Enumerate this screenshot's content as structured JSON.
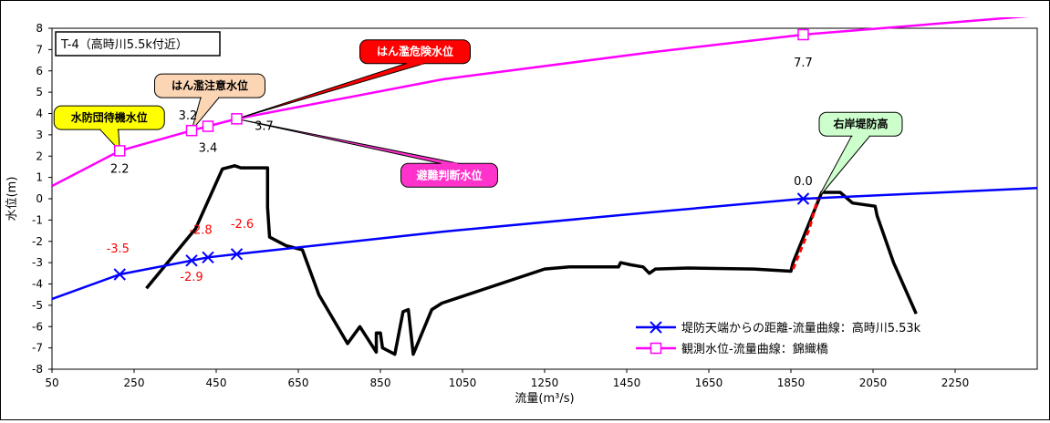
{
  "chart_data": {
    "type": "line",
    "title": "",
    "inset_label": "T-4（高時川5.5k付近）",
    "xlabel": "流量(m³/s)",
    "ylabel": "水位(m)",
    "xlim": [
      50,
      2450
    ],
    "ylim": [
      -8,
      8
    ],
    "xticks": [
      50,
      250,
      450,
      650,
      850,
      1050,
      1250,
      1450,
      1650,
      1850,
      2050,
      2250
    ],
    "yticks": [
      8,
      7,
      6,
      5,
      4,
      3,
      2,
      1,
      0,
      -1,
      -2,
      -3,
      -4,
      -5,
      -6,
      -7,
      -8
    ],
    "grid": "none",
    "legend_position": "bottom-right",
    "series": [
      {
        "name": "堤防天端からの距離-流量曲線：高時川5.53k",
        "color": "#0000ff",
        "marker": "x",
        "curve": [
          [
            50,
            -4.7
          ],
          [
            215,
            -3.55
          ],
          [
            390,
            -2.9
          ],
          [
            430,
            -2.75
          ],
          [
            500,
            -2.6
          ],
          [
            1000,
            -1.55
          ],
          [
            1500,
            -0.65
          ],
          [
            1880,
            0.0
          ],
          [
            2450,
            0.5
          ]
        ],
        "points": [
          [
            215,
            -3.55
          ],
          [
            390,
            -2.9
          ],
          [
            430,
            -2.75
          ],
          [
            500,
            -2.6
          ],
          [
            1880,
            0.0
          ]
        ],
        "labels": [
          {
            "text": "-3.5",
            "x": 215,
            "y": -3.55,
            "color": "#ff0000"
          },
          {
            "text": "-2.9",
            "x": 390,
            "y": -2.9,
            "color": "#ff0000"
          },
          {
            "text": "-2.8",
            "x": 430,
            "y": -2.75,
            "color": "#ff0000"
          },
          {
            "text": "-2.6",
            "x": 500,
            "y": -2.6,
            "color": "#ff0000"
          },
          {
            "text": "0.0",
            "x": 1880,
            "y": 0.0,
            "color": "#000000"
          }
        ]
      },
      {
        "name": "観測水位-流量曲線：錦織橋",
        "color": "#ff00ff",
        "marker": "square",
        "curve": [
          [
            50,
            0.6
          ],
          [
            215,
            2.25
          ],
          [
            390,
            3.2
          ],
          [
            430,
            3.4
          ],
          [
            500,
            3.75
          ],
          [
            1000,
            5.6
          ],
          [
            1500,
            6.85
          ],
          [
            1880,
            7.7
          ],
          [
            2450,
            8.6
          ]
        ],
        "points": [
          [
            215,
            2.25
          ],
          [
            390,
            3.2
          ],
          [
            430,
            3.4
          ],
          [
            500,
            3.75
          ],
          [
            1880,
            7.7
          ]
        ],
        "labels": [
          {
            "text": "2.2",
            "x": 215,
            "y": 2.25
          },
          {
            "text": "3.2",
            "x": 390,
            "y": 3.2
          },
          {
            "text": "3.4",
            "x": 430,
            "y": 3.4
          },
          {
            "text": "3.7",
            "x": 500,
            "y": 3.75
          },
          {
            "text": "7.7",
            "x": 1880,
            "y": 7.7
          }
        ]
      }
    ],
    "cross_section": {
      "color": "#000000",
      "points": [
        [
          280,
          -4.2
        ],
        [
          400,
          -1.4
        ],
        [
          465,
          1.4
        ],
        [
          495,
          1.55
        ],
        [
          510,
          1.45
        ],
        [
          560,
          1.45
        ],
        [
          575,
          1.45
        ],
        [
          575,
          -0.4
        ],
        [
          580,
          -1.8
        ],
        [
          620,
          -2.2
        ],
        [
          660,
          -2.4
        ],
        [
          700,
          -4.5
        ],
        [
          770,
          -6.8
        ],
        [
          800,
          -6.0
        ],
        [
          840,
          -7.2
        ],
        [
          840,
          -6.3
        ],
        [
          850,
          -6.3
        ],
        [
          855,
          -7.0
        ],
        [
          885,
          -7.3
        ],
        [
          905,
          -5.3
        ],
        [
          918,
          -5.2
        ],
        [
          930,
          -7.3
        ],
        [
          975,
          -5.2
        ],
        [
          1000,
          -4.9
        ],
        [
          1250,
          -3.3
        ],
        [
          1310,
          -3.2
        ],
        [
          1430,
          -3.2
        ],
        [
          1435,
          -3.0
        ],
        [
          1460,
          -3.1
        ],
        [
          1490,
          -3.2
        ],
        [
          1505,
          -3.5
        ],
        [
          1520,
          -3.3
        ],
        [
          1600,
          -3.25
        ],
        [
          1760,
          -3.3
        ],
        [
          1850,
          -3.4
        ],
        [
          1855,
          -3.0
        ],
        [
          1925,
          0.3
        ],
        [
          1950,
          0.3
        ],
        [
          1970,
          0.3
        ],
        [
          2000,
          -0.2
        ],
        [
          2055,
          -0.35
        ],
        [
          2060,
          -0.8
        ],
        [
          2100,
          -3.0
        ],
        [
          2155,
          -5.4
        ]
      ]
    },
    "dashed_segment": {
      "color": "#ff0000",
      "points": [
        [
          1855,
          -3.3
        ],
        [
          1895,
          -1.4
        ],
        [
          1915,
          0.0
        ]
      ]
    },
    "callouts": [
      {
        "text": "水防団待機水位",
        "fill": "#ffff00",
        "text_color": "#000000",
        "box": [
          55,
          3.8
        ],
        "tip": [
          215,
          2.25
        ]
      },
      {
        "text": "はん濫注意水位",
        "fill": "#fcd5b4",
        "text_color": "#000000",
        "box": [
          300,
          5.3
        ],
        "tip": [
          390,
          3.2
        ]
      },
      {
        "text": "はん濫危険水位",
        "fill": "#ff0000",
        "text_color": "#ffffff",
        "box": [
          800,
          6.9
        ],
        "tip": [
          500,
          3.75
        ]
      },
      {
        "text": "避難判断水位",
        "fill": "#ff33cc",
        "text_color": "#ffffff",
        "box": [
          900,
          1.1
        ],
        "tip": [
          500,
          3.75
        ]
      },
      {
        "text": "右岸堤防高",
        "fill": "#ccffcc",
        "text_color": "#000000",
        "box": [
          2020,
          3.5
        ],
        "tip": [
          1915,
          0.0
        ]
      }
    ]
  }
}
